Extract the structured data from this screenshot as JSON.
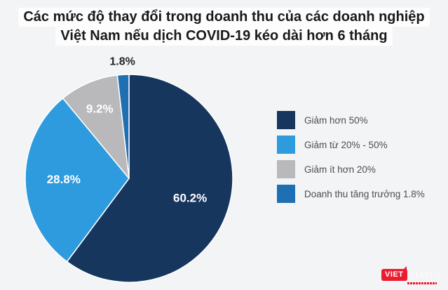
{
  "title": {
    "full": "Các mức độ thay đổi trong doanh thu của các doanh nghiệp Việt Nam nếu dịch COVID-19 kéo dài hơn 6 tháng",
    "lines": [
      "Các mức độ thay đổi trong doanh thu của các doanh nghiệp",
      "Việt Nam nếu dịch COVID-19 kéo dài hơn 6 tháng"
    ]
  },
  "chart_data": {
    "type": "pie",
    "title": "Các mức độ thay đổi trong doanh thu của các doanh nghiệp Việt Nam nếu dịch COVID-19 kéo dài hơn 6 tháng",
    "start_angle_deg": 0,
    "direction": "clockwise",
    "legend_position": "right",
    "slices": [
      {
        "label": "Giảm hơn 50%",
        "value": 60.2,
        "display": "60.2%",
        "color": "#16365e",
        "label_color": "#ffffff",
        "label_pos": "inside",
        "label_r": 0.62
      },
      {
        "label": "Giảm từ 20% - 50%",
        "value": 28.8,
        "display": "28.8%",
        "color": "#2d9bdd",
        "label_color": "#ffffff",
        "label_pos": "inside",
        "label_r": 0.63
      },
      {
        "label": "Giảm ít hơn 20%",
        "value": 9.2,
        "display": "9.2%",
        "color": "#b9b9bb",
        "label_color": "#ffffff",
        "label_pos": "inside",
        "label_r": 0.72
      },
      {
        "label": "Doanh thu tăng trưởng 1.8%",
        "value": 1.8,
        "display": "1.8%",
        "color": "#1f70b2",
        "label_color": "#252527",
        "label_pos": "outside",
        "label_r": 1.12
      }
    ]
  },
  "logo": {
    "badge": "VIET",
    "suffix": "TIMES"
  },
  "colors": {
    "background": "#f3f4f6",
    "title_highlight": "#fdfdfe",
    "slice_gap_stroke": "#ffffff",
    "legend_text": "#4d4e50"
  }
}
